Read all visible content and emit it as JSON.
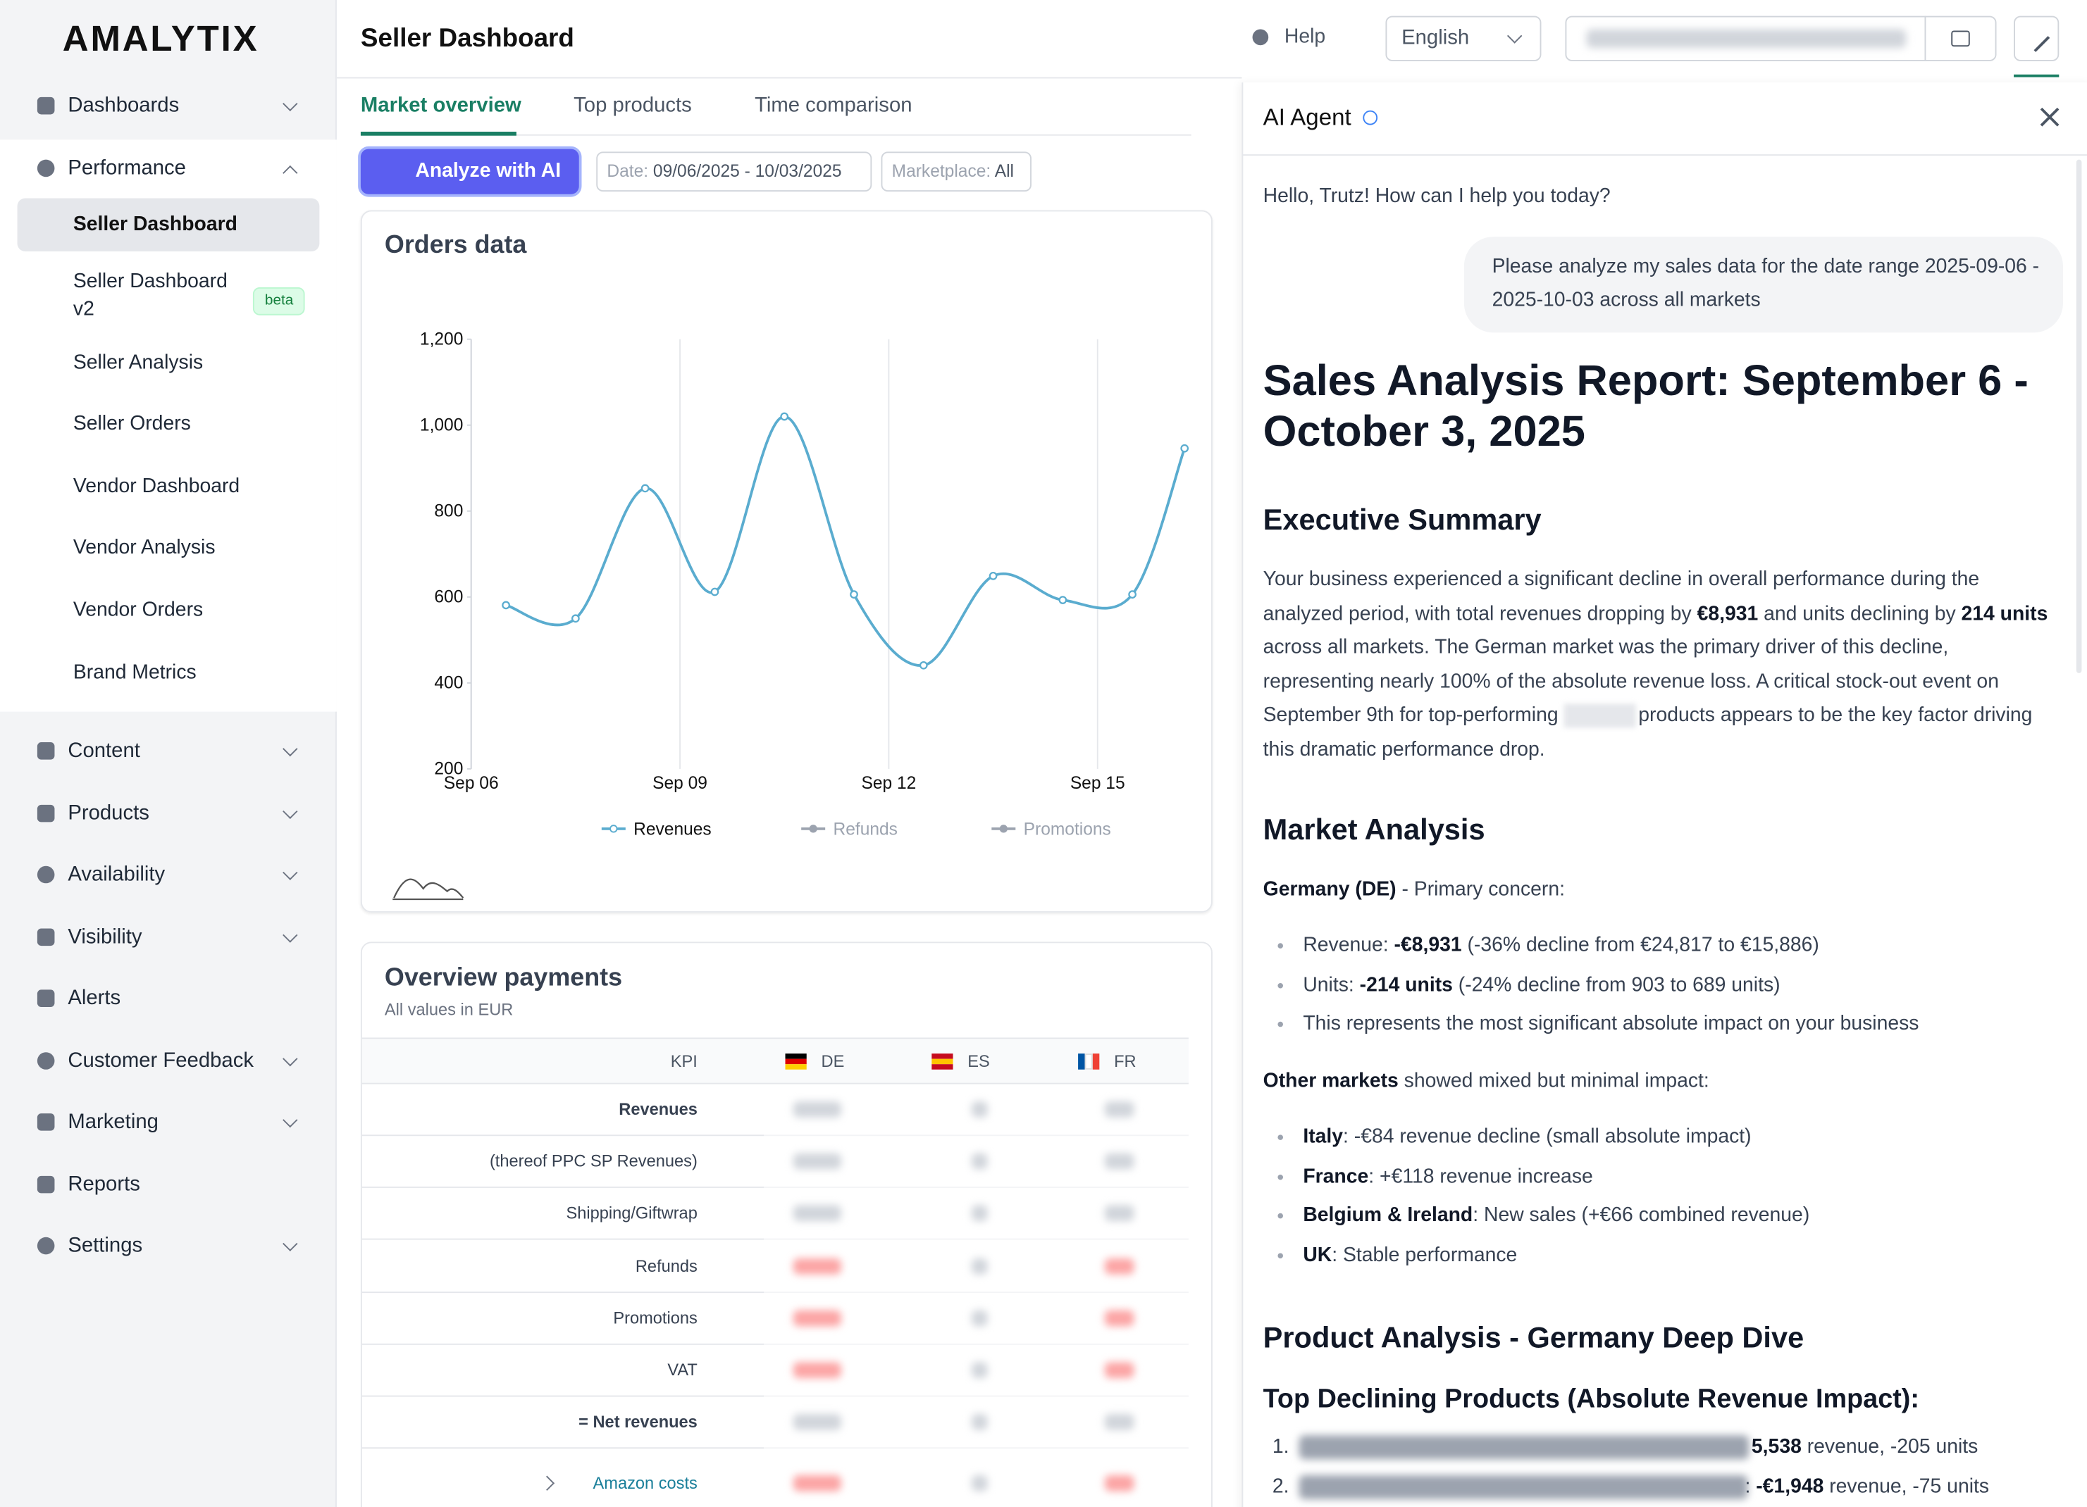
{
  "sidebar": {
    "logo": "AMALYTIX",
    "items": [
      {
        "label": "Dashboards",
        "has_children": true
      },
      {
        "label": "Performance",
        "has_children": true,
        "expanded": true,
        "children": [
          {
            "label": "Seller Dashboard",
            "active": true
          },
          {
            "label": "Seller Dashboard v2",
            "badge": "beta"
          },
          {
            "label": "Seller Analysis"
          },
          {
            "label": "Seller Orders"
          },
          {
            "label": "Vendor Dashboard"
          },
          {
            "label": "Vendor Analysis"
          },
          {
            "label": "Vendor Orders"
          },
          {
            "label": "Brand Metrics"
          }
        ]
      },
      {
        "label": "Content",
        "has_children": true
      },
      {
        "label": "Products",
        "has_children": true
      },
      {
        "label": "Availability",
        "has_children": true
      },
      {
        "label": "Visibility",
        "has_children": true
      },
      {
        "label": "Alerts",
        "has_children": false
      },
      {
        "label": "Customer Feedback",
        "has_children": true
      },
      {
        "label": "Marketing",
        "has_children": true
      },
      {
        "label": "Reports",
        "has_children": false
      },
      {
        "label": "Settings",
        "has_children": true
      }
    ]
  },
  "header": {
    "title": "Seller Dashboard",
    "help": "Help",
    "language": "English"
  },
  "tabs": [
    "Market overview",
    "Top products",
    "Time comparison"
  ],
  "toolbar": {
    "button": "Analyze with AI",
    "date_label": "Date: ",
    "date_value": "09/06/2025 - 10/03/2025",
    "marketplace_label": "Marketplace: ",
    "marketplace_value": "All"
  },
  "orders_chart": {
    "type": "line",
    "title": "Orders data",
    "x": [
      0.5,
      1.5,
      2.5,
      3.5,
      4.5,
      5.5,
      6.5,
      7.5,
      8.5,
      9.5,
      10.25
    ],
    "xlim": [
      0,
      10.25
    ],
    "xticks": [
      {
        "value": 0,
        "label": "Sep 06"
      },
      {
        "value": 3,
        "label": "Sep 09"
      },
      {
        "value": 6,
        "label": "Sep 12"
      },
      {
        "value": 9,
        "label": "Sep 15"
      }
    ],
    "ylim": [
      200,
      1200
    ],
    "yticks": [
      200,
      400,
      600,
      800,
      {
        "value": 1000,
        "label": "1,000"
      },
      {
        "value": 1200,
        "label": "1,200"
      }
    ],
    "grid": "x",
    "series": [
      {
        "name": "Revenues",
        "color": "#5aaccf",
        "values": [
          581,
          550,
          853,
          612,
          1020,
          606,
          441,
          649,
          593,
          606,
          946
        ]
      },
      {
        "name": "Refunds",
        "color": "#9ca3af",
        "hidden": true
      },
      {
        "name": "Promotions",
        "color": "#9ca3af",
        "hidden": true
      }
    ]
  },
  "payments": {
    "title": "Overview payments",
    "subtitle": "All values in EUR",
    "columns": [
      "KPI",
      "DE",
      "ES",
      "FR"
    ],
    "rows": [
      {
        "label": "Revenues",
        "bold": true
      },
      {
        "label": "(thereof PPC SP Revenues)"
      },
      {
        "label": "Shipping/Giftwrap"
      },
      {
        "label": "Refunds",
        "negative": true
      },
      {
        "label": "Promotions",
        "negative": true
      },
      {
        "label": "VAT",
        "negative": true
      },
      {
        "label": "= Net revenues",
        "bold": true
      },
      {
        "label": "Amazon costs",
        "negative": true,
        "expandable": true
      }
    ]
  },
  "ai_panel": {
    "title": "AI Agent",
    "greeting": "Hello, Trutz! How can I help you today?",
    "user_message": "Please analyze my sales data for the date range 2025-09-06 - 2025-10-03 across all markets",
    "report_title": "Sales Analysis Report: September 6 - October 3, 2025",
    "exec_heading": "Executive Summary",
    "exec_paragraph": [
      {
        "text": "Your business experienced a significant decline in overall performance during the analyzed period, with total revenues dropping by "
      },
      {
        "text": "€8,931",
        "bold": true
      },
      {
        "text": " and units declining by "
      },
      {
        "text": "214 units",
        "bold": true
      },
      {
        "text": " across all markets. The German market was the primary driver of this decline, representing nearly 100% of the absolute revenue loss. A critical stock-out event on September 9th for top-performing "
      },
      {
        "text": "products appears to be the key factor driving this dramatic performance drop.",
        "redacted_before": true
      }
    ],
    "market_heading": "Market Analysis",
    "germany_line": [
      {
        "text": "Germany (DE)",
        "bold": true
      },
      {
        "text": " - Primary concern:"
      }
    ],
    "germany_bullets": [
      [
        {
          "text": "Revenue: "
        },
        {
          "text": "-€8,931",
          "bold": true
        },
        {
          "text": " (-36% decline from €24,817 to €15,886)"
        }
      ],
      [
        {
          "text": "Units: "
        },
        {
          "text": "-214 units",
          "bold": true
        },
        {
          "text": " (-24% decline from 903 to 689 units)"
        }
      ],
      [
        {
          "text": "This represents the most significant absolute impact on your business"
        }
      ]
    ],
    "other_line": [
      {
        "text": "Other markets",
        "bold": true
      },
      {
        "text": " showed mixed but minimal impact:"
      }
    ],
    "other_bullets": [
      [
        {
          "text": "Italy",
          "bold": true
        },
        {
          "text": ": -€84 revenue decline (small absolute impact)"
        }
      ],
      [
        {
          "text": "France",
          "bold": true
        },
        {
          "text": ": +€118 revenue increase"
        }
      ],
      [
        {
          "text": "Belgium & Ireland",
          "bold": true
        },
        {
          "text": ": New sales (+€66 combined revenue)"
        }
      ],
      [
        {
          "text": "UK",
          "bold": true
        },
        {
          "text": ": Stable performance"
        }
      ]
    ],
    "product_heading": "Product Analysis - Germany Deep Dive",
    "declining_heading": "Top Declining Products (Absolute Revenue Impact):",
    "declining_items": [
      {
        "number": "1.",
        "parts": [
          {
            "text": "5,538",
            "bold": true
          },
          {
            "text": " revenue, -205 units"
          }
        ]
      },
      {
        "number": "2.",
        "parts": [
          {
            "text": ": "
          },
          {
            "text": "-€1,948",
            "bold": true
          },
          {
            "text": " revenue, -75 units"
          }
        ]
      }
    ]
  }
}
